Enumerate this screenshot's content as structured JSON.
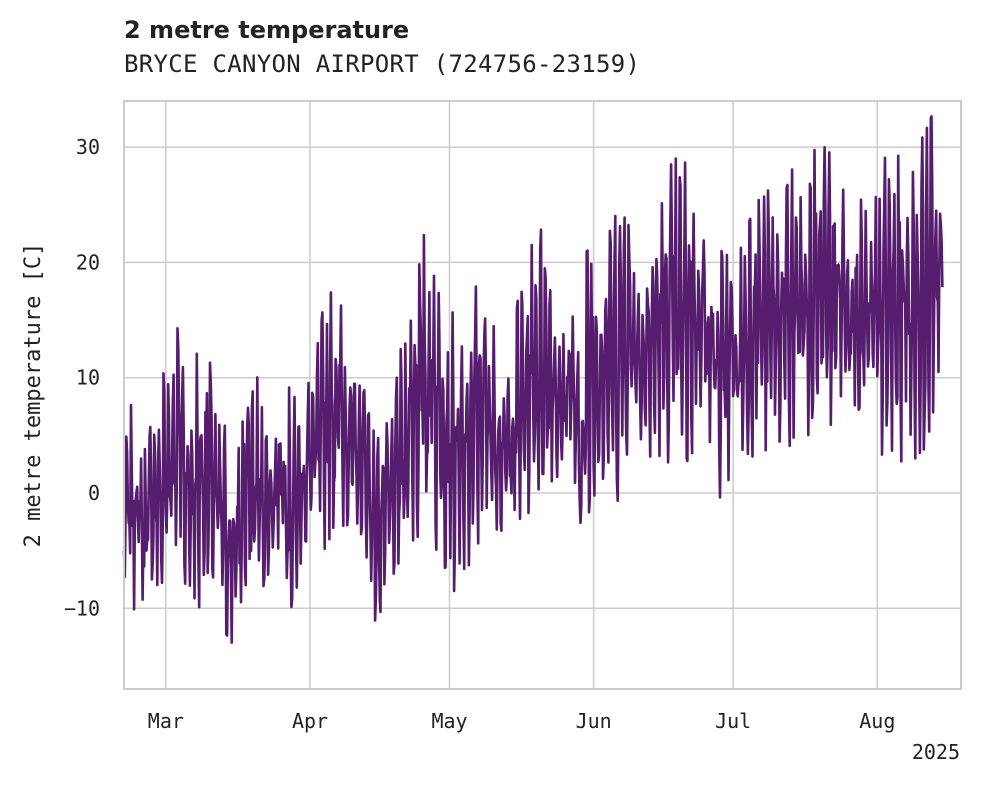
{
  "chart_data": {
    "type": "line",
    "title": "2 metre temperature",
    "subtitle": "BRYCE CANYON AIRPORT (724756-23159)",
    "ylabel": "2 metre temperature [C]",
    "xlabel": "",
    "x_start": "2025-02-20",
    "x_end": "2025-08-15",
    "x_range": [
      "2025-02-20",
      "2025-08-19"
    ],
    "ylim": [
      -17,
      34
    ],
    "y_ticks": [
      -10,
      0,
      10,
      20,
      30
    ],
    "x_ticks": [
      {
        "date": "2025-03-01",
        "label": "Mar"
      },
      {
        "date": "2025-04-01",
        "label": "Apr"
      },
      {
        "date": "2025-05-01",
        "label": "May"
      },
      {
        "date": "2025-06-01",
        "label": "Jun"
      },
      {
        "date": "2025-07-01",
        "label": "Jul"
      },
      {
        "date": "2025-08-01",
        "label": "Aug"
      }
    ],
    "year_label": "2025",
    "grid": true,
    "line_color": "#561c6e",
    "series": [
      {
        "name": "",
        "daily_min_max": [
          [
            "2025-02-20",
            -8,
            3
          ],
          [
            "2025-02-22",
            -9,
            8
          ],
          [
            "2025-02-24",
            -10,
            4
          ],
          [
            "2025-02-26",
            -7,
            6
          ],
          [
            "2025-02-28",
            -11,
            10
          ],
          [
            "2025-03-02",
            -6,
            14
          ],
          [
            "2025-03-04",
            -4,
            15
          ],
          [
            "2025-03-06",
            -11,
            9
          ],
          [
            "2025-03-08",
            -10,
            12
          ],
          [
            "2025-03-10",
            -9,
            13
          ],
          [
            "2025-03-12",
            -7,
            6
          ],
          [
            "2025-03-14",
            -13,
            5
          ],
          [
            "2025-03-16",
            -14,
            3
          ],
          [
            "2025-03-18",
            -9,
            10
          ],
          [
            "2025-03-20",
            -10,
            11
          ],
          [
            "2025-03-22",
            -8,
            6
          ],
          [
            "2025-03-24",
            -5,
            4
          ],
          [
            "2025-03-26",
            -4,
            9
          ],
          [
            "2025-03-28",
            -11,
            8
          ],
          [
            "2025-03-30",
            -6,
            6
          ],
          [
            "2025-04-01",
            -4,
            10
          ],
          [
            "2025-04-03",
            -5,
            13
          ],
          [
            "2025-04-05",
            -3,
            18
          ],
          [
            "2025-04-07",
            -3,
            18
          ],
          [
            "2025-04-09",
            -2,
            13
          ],
          [
            "2025-04-11",
            -2,
            8
          ],
          [
            "2025-04-13",
            -4,
            10
          ],
          [
            "2025-04-15",
            -11,
            4
          ],
          [
            "2025-04-17",
            -9,
            5
          ],
          [
            "2025-04-19",
            -7,
            7
          ],
          [
            "2025-04-21",
            -6,
            13
          ],
          [
            "2025-04-23",
            -4,
            19
          ],
          [
            "2025-04-25",
            -3,
            21
          ],
          [
            "2025-04-27",
            -2,
            23
          ],
          [
            "2025-04-29",
            -6,
            20
          ],
          [
            "2025-05-01",
            -5,
            16
          ],
          [
            "2025-05-03",
            -10,
            12
          ],
          [
            "2025-05-05",
            -8,
            14
          ],
          [
            "2025-05-07",
            -4,
            18
          ],
          [
            "2025-05-09",
            -3,
            17
          ],
          [
            "2025-05-11",
            -2,
            13
          ],
          [
            "2025-05-13",
            -4,
            9
          ],
          [
            "2025-05-15",
            -3,
            15
          ],
          [
            "2025-05-17",
            -2,
            18
          ],
          [
            "2025-05-19",
            0,
            21
          ],
          [
            "2025-05-21",
            1,
            22
          ],
          [
            "2025-05-23",
            2,
            20
          ],
          [
            "2025-05-25",
            1,
            12
          ],
          [
            "2025-05-27",
            3,
            18
          ],
          [
            "2025-05-29",
            -5,
            10
          ],
          [
            "2025-05-31",
            -4,
            24
          ],
          [
            "2025-06-02",
            0,
            23
          ],
          [
            "2025-06-04",
            2,
            21
          ],
          [
            "2025-06-06",
            0,
            25
          ],
          [
            "2025-06-08",
            4,
            27
          ],
          [
            "2025-06-10",
            8,
            18
          ],
          [
            "2025-06-12",
            4,
            19
          ],
          [
            "2025-06-14",
            3,
            23
          ],
          [
            "2025-06-16",
            4,
            25
          ],
          [
            "2025-06-18",
            2,
            28
          ],
          [
            "2025-06-20",
            1,
            28
          ],
          [
            "2025-06-22",
            4,
            27
          ],
          [
            "2025-06-24",
            7,
            25
          ],
          [
            "2025-06-26",
            5,
            22
          ],
          [
            "2025-06-28",
            -1,
            20
          ],
          [
            "2025-06-30",
            2,
            22
          ],
          [
            "2025-07-02",
            3,
            19
          ],
          [
            "2025-07-04",
            3,
            24
          ],
          [
            "2025-07-06",
            5,
            28
          ],
          [
            "2025-07-08",
            4,
            26
          ],
          [
            "2025-07-10",
            6,
            24
          ],
          [
            "2025-07-12",
            4,
            25
          ],
          [
            "2025-07-14",
            3,
            30
          ],
          [
            "2025-07-16",
            5,
            26
          ],
          [
            "2025-07-18",
            4,
            28
          ],
          [
            "2025-07-20",
            7,
            31
          ],
          [
            "2025-07-22",
            6,
            30
          ],
          [
            "2025-07-24",
            7,
            28
          ],
          [
            "2025-07-26",
            8,
            27
          ],
          [
            "2025-07-28",
            7,
            25
          ],
          [
            "2025-07-30",
            5,
            23
          ],
          [
            "2025-08-01",
            4,
            25
          ],
          [
            "2025-08-03",
            3,
            29
          ],
          [
            "2025-08-05",
            2,
            28
          ],
          [
            "2025-08-07",
            5,
            29
          ],
          [
            "2025-08-09",
            4,
            29
          ],
          [
            "2025-08-11",
            4,
            30
          ],
          [
            "2025-08-13",
            8,
            32
          ],
          [
            "2025-08-15",
            14,
            25
          ]
        ]
      }
    ]
  }
}
